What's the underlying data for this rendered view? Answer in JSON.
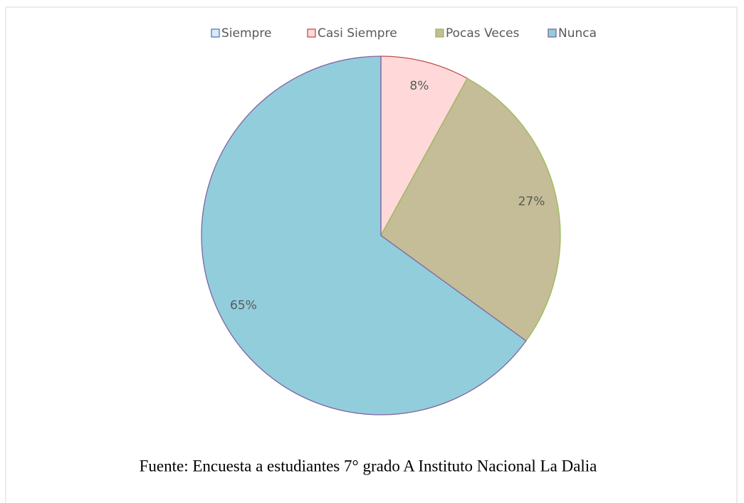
{
  "chart_data": {
    "type": "pie",
    "categories": [
      "Siempre",
      "Casi Siempre",
      "Pocas Veces",
      "Nunca"
    ],
    "values": [
      0,
      8,
      27,
      65
    ],
    "value_labels": [
      null,
      "8%",
      "27%",
      "65%"
    ],
    "colors": [
      "#dbe9f8",
      "#ffd9d9",
      "#c4bd97",
      "#92cddc"
    ],
    "edge_colors": [
      "#4a7ebb",
      "#c0504d",
      "#9bbb59",
      "#8064a2"
    ],
    "legend": "top"
  },
  "source": "Fuente: Encuesta a estudiantes 7° grado A Instituto Nacional La Dalia"
}
